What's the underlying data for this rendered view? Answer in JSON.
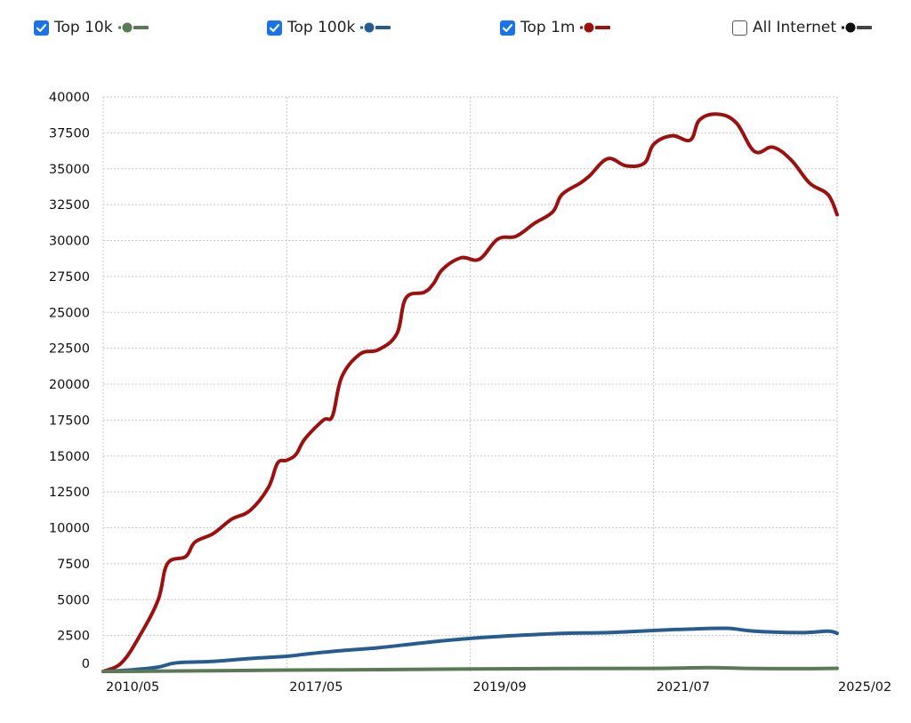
{
  "legend": [
    {
      "label": "Top 10k",
      "checked": true,
      "color": "#5a7a55",
      "icon": "checkbox-checked"
    },
    {
      "label": "Top 100k",
      "checked": true,
      "color": "#275c91",
      "icon": "checkbox-checked"
    },
    {
      "label": "Top 1m",
      "checked": true,
      "color": "#9c1010",
      "icon": "checkbox-checked"
    },
    {
      "label": "All Internet",
      "checked": false,
      "color": "#111111",
      "icon": "checkbox-unchecked"
    }
  ],
  "chart_data": {
    "type": "line",
    "grid": true,
    "legend_position": "top",
    "x_ticks": [
      "2010/05",
      "2017/05",
      "2019/09",
      "2021/07",
      "2025/02"
    ],
    "y_ticks": [
      "0",
      "2500",
      "5000",
      "7500",
      "10000",
      "12500",
      "15000",
      "17500",
      "20000",
      "22500",
      "25000",
      "27500",
      "30000",
      "32500",
      "35000",
      "37500",
      "40000"
    ],
    "ylim": [
      0,
      40000
    ],
    "x": [
      0,
      0.25,
      0.5,
      0.75,
      1,
      1.25,
      1.5,
      1.75,
      2,
      2.25,
      2.5,
      2.75,
      3,
      3.25,
      3.5,
      3.75,
      4
    ],
    "series": [
      {
        "name": "Top 10k",
        "color": "#5a7a55",
        "points": [
          [
            0.0,
            0
          ],
          [
            0.2,
            10
          ],
          [
            0.5,
            40
          ],
          [
            1.0,
            90
          ],
          [
            1.5,
            120
          ],
          [
            2.0,
            170
          ],
          [
            2.5,
            200
          ],
          [
            3.0,
            210
          ],
          [
            3.3,
            260
          ],
          [
            3.5,
            210
          ],
          [
            3.8,
            190
          ],
          [
            4.0,
            220
          ]
        ]
      },
      {
        "name": "Top 100k",
        "color": "#275c91",
        "points": [
          [
            0.0,
            0
          ],
          [
            0.15,
            100
          ],
          [
            0.3,
            300
          ],
          [
            0.4,
            600
          ],
          [
            0.6,
            700
          ],
          [
            0.8,
            900
          ],
          [
            1.0,
            1050
          ],
          [
            1.1,
            1200
          ],
          [
            1.3,
            1450
          ],
          [
            1.5,
            1650
          ],
          [
            1.75,
            2000
          ],
          [
            2.0,
            2300
          ],
          [
            2.25,
            2500
          ],
          [
            2.5,
            2650
          ],
          [
            2.75,
            2700
          ],
          [
            3.0,
            2850
          ],
          [
            3.2,
            2950
          ],
          [
            3.4,
            3000
          ],
          [
            3.55,
            2800
          ],
          [
            3.8,
            2700
          ],
          [
            3.95,
            2800
          ],
          [
            4.0,
            2650
          ]
        ]
      },
      {
        "name": "Top 1m",
        "color": "#9c1010",
        "points": [
          [
            0.0,
            0
          ],
          [
            0.1,
            600
          ],
          [
            0.2,
            2500
          ],
          [
            0.3,
            5000
          ],
          [
            0.35,
            7500
          ],
          [
            0.45,
            8000
          ],
          [
            0.5,
            9000
          ],
          [
            0.6,
            9600
          ],
          [
            0.7,
            10600
          ],
          [
            0.8,
            11200
          ],
          [
            0.9,
            12800
          ],
          [
            0.95,
            14500
          ],
          [
            1.0,
            14700
          ],
          [
            1.05,
            15100
          ],
          [
            1.1,
            16200
          ],
          [
            1.2,
            17500
          ],
          [
            1.25,
            17800
          ],
          [
            1.3,
            20500
          ],
          [
            1.4,
            22100
          ],
          [
            1.5,
            22400
          ],
          [
            1.6,
            23500
          ],
          [
            1.65,
            26000
          ],
          [
            1.75,
            26400
          ],
          [
            1.8,
            27000
          ],
          [
            1.85,
            28000
          ],
          [
            1.95,
            28800
          ],
          [
            2.05,
            28700
          ],
          [
            2.15,
            30100
          ],
          [
            2.25,
            30300
          ],
          [
            2.35,
            31200
          ],
          [
            2.45,
            32000
          ],
          [
            2.5,
            33200
          ],
          [
            2.6,
            34000
          ],
          [
            2.65,
            34500
          ],
          [
            2.75,
            35700
          ],
          [
            2.85,
            35200
          ],
          [
            2.95,
            35400
          ],
          [
            3.0,
            36700
          ],
          [
            3.1,
            37300
          ],
          [
            3.2,
            37000
          ],
          [
            3.25,
            38400
          ],
          [
            3.35,
            38800
          ],
          [
            3.45,
            38200
          ],
          [
            3.55,
            36200
          ],
          [
            3.65,
            36500
          ],
          [
            3.75,
            35600
          ],
          [
            3.85,
            34000
          ],
          [
            3.95,
            33200
          ],
          [
            4.0,
            31800
          ]
        ]
      }
    ]
  }
}
